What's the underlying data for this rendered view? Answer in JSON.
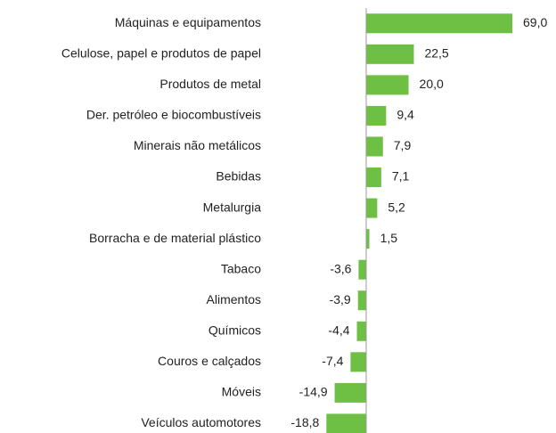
{
  "chart_data": {
    "type": "hbar",
    "categories": [
      "Máquinas e equipamentos",
      "Celulose, papel e produtos de papel",
      "Produtos de metal",
      "Der. petróleo e biocombustíveis",
      "Minerais não metálicos",
      "Bebidas",
      "Metalurgia",
      "Borracha e de material plástico",
      "Tabaco",
      "Alimentos",
      "Químicos",
      "Couros e calçados",
      "Móveis",
      "Veículos automotores"
    ],
    "values": [
      69.0,
      22.5,
      20.0,
      9.4,
      7.9,
      7.1,
      5.2,
      1.5,
      -3.6,
      -3.9,
      -4.4,
      -7.4,
      -14.9,
      -18.8
    ],
    "value_labels": [
      "69,0",
      "22,5",
      "20,0",
      "9,4",
      "7,9",
      "7,1",
      "5,2",
      "1,5",
      "-3,6",
      "-3,9",
      "-4,4",
      "-7,4",
      "-14,9",
      "-18,8"
    ],
    "color": "#6dc044"
  }
}
